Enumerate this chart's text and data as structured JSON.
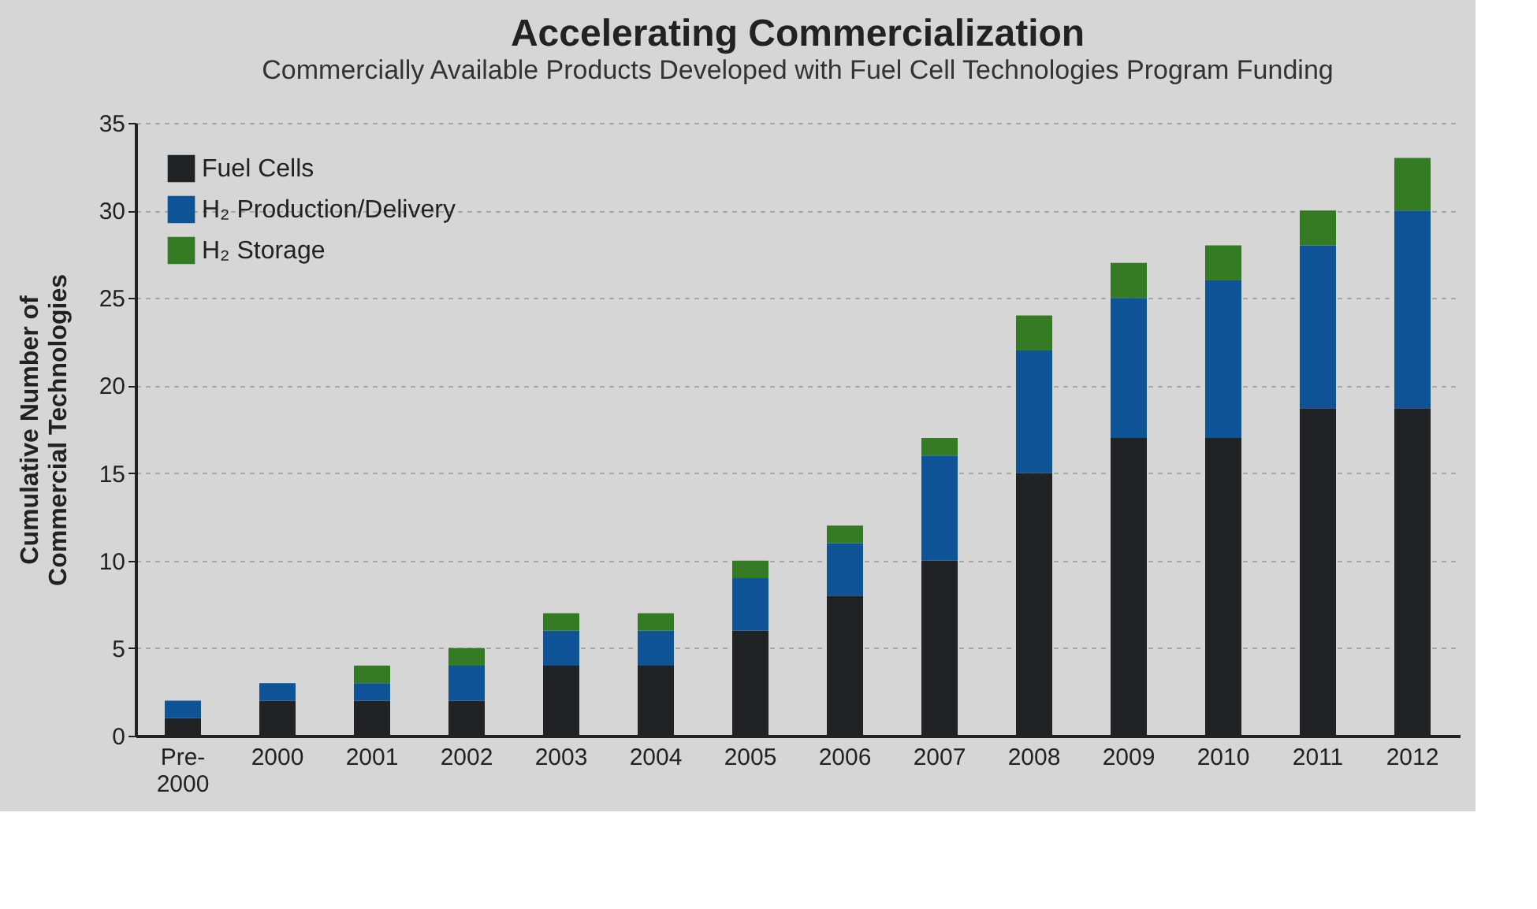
{
  "chart_data": {
    "type": "bar",
    "title": "Accelerating Commercialization",
    "subtitle": "Commercially Available Products Developed with Fuel Cell Technologies Program Funding",
    "ylabel": "Cumulative Number of\nCommercial Technologies",
    "categories": [
      "Pre-\n2000",
      "2000",
      "2001",
      "2002",
      "2003",
      "2004",
      "2005",
      "2006",
      "2007",
      "2008",
      "2009",
      "2010",
      "2011",
      "2012"
    ],
    "stacked": true,
    "series": [
      {
        "name": "Fuel Cells",
        "color": "#1f2326",
        "values": [
          1,
          2,
          2,
          2,
          4,
          4,
          6,
          8,
          10,
          15,
          17,
          17,
          18.7,
          18.7
        ]
      },
      {
        "name": "H₂ Production/Delivery",
        "color": "#0e5396",
        "values": [
          1,
          1,
          1,
          2,
          2,
          2,
          3,
          3,
          6,
          7,
          8,
          9,
          9.3,
          11.3
        ]
      },
      {
        "name": "H₂ Storage",
        "color": "#347b24",
        "values": [
          0,
          0,
          1,
          1,
          1,
          1,
          1,
          1,
          1,
          2,
          2,
          2,
          2,
          3
        ]
      }
    ],
    "ylim": [
      0,
      35
    ],
    "yticks": [
      0,
      5,
      10,
      15,
      20,
      25,
      30,
      35
    ],
    "grid": "y",
    "legend": "top left"
  }
}
